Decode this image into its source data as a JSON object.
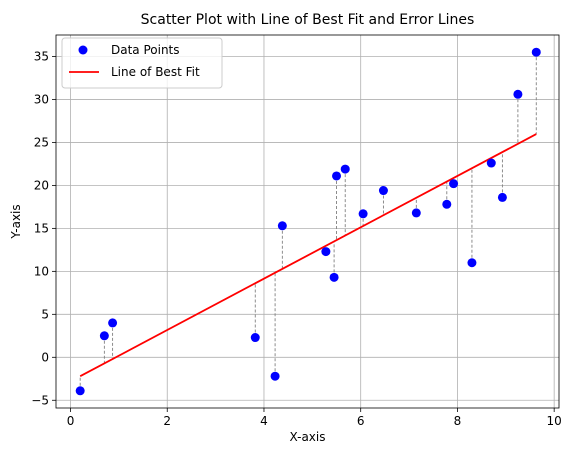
{
  "chart_data": {
    "type": "scatter",
    "title": "Scatter Plot with Line of Best Fit and Error Lines",
    "xlabel": "X-axis",
    "ylabel": "Y-axis",
    "xlim": [
      -0.3,
      10.1
    ],
    "ylim": [
      -5.9,
      37.5
    ],
    "xticks": [
      0,
      2,
      4,
      6,
      8,
      10
    ],
    "yticks": [
      -5,
      0,
      5,
      10,
      15,
      20,
      25,
      30,
      35
    ],
    "grid": true,
    "legend_position": "top-left",
    "series": [
      {
        "name": "Data Points",
        "kind": "scatter",
        "color": "#0000ff",
        "points": [
          {
            "x": 0.2,
            "y": -3.9
          },
          {
            "x": 0.7,
            "y": 2.5
          },
          {
            "x": 0.87,
            "y": 4.0
          },
          {
            "x": 3.82,
            "y": 2.3
          },
          {
            "x": 4.23,
            "y": -2.2
          },
          {
            "x": 4.38,
            "y": 15.3
          },
          {
            "x": 5.28,
            "y": 12.3
          },
          {
            "x": 5.45,
            "y": 9.3
          },
          {
            "x": 5.5,
            "y": 21.1
          },
          {
            "x": 5.68,
            "y": 21.9
          },
          {
            "x": 6.05,
            "y": 16.7
          },
          {
            "x": 6.47,
            "y": 19.4
          },
          {
            "x": 7.15,
            "y": 16.8
          },
          {
            "x": 7.78,
            "y": 17.8
          },
          {
            "x": 7.92,
            "y": 20.2
          },
          {
            "x": 8.3,
            "y": 11.0
          },
          {
            "x": 8.7,
            "y": 22.6
          },
          {
            "x": 8.93,
            "y": 18.6
          },
          {
            "x": 9.25,
            "y": 30.6
          },
          {
            "x": 9.63,
            "y": 35.5
          }
        ]
      },
      {
        "name": "Line of Best Fit",
        "kind": "line",
        "color": "#ff0000",
        "slope": 2.9875,
        "intercept": -2.8
      }
    ],
    "error_lines": {
      "style": "dashed",
      "color": "#808080"
    }
  }
}
